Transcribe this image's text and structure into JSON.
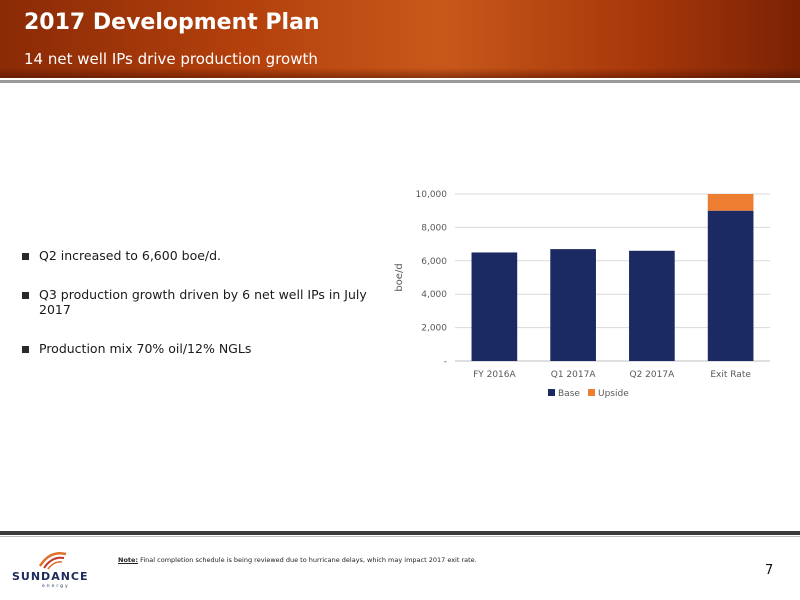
{
  "header": {
    "title": "2017 Development Plan",
    "subtitle": "14 net well IPs drive production growth"
  },
  "bullets": [
    "Q2 increased to 6,600 boe/d.",
    "Q3 production growth driven by 6 net well IPs in July 2017",
    "Production mix 70% oil/12% NGLs"
  ],
  "chart_data": {
    "type": "bar",
    "stacked": true,
    "categories": [
      "FY 2016A",
      "Q1 2017A",
      "Q2 2017A",
      "Exit Rate"
    ],
    "series": [
      {
        "name": "Base",
        "values": [
          6500,
          6700,
          6600,
          9000
        ],
        "color": "#1c2a64"
      },
      {
        "name": "Upside",
        "values": [
          0,
          0,
          0,
          1000
        ],
        "color": "#ed7d31"
      }
    ],
    "ylabel": "boe/d",
    "ylim": [
      0,
      10000
    ],
    "yticks": [
      0,
      2000,
      4000,
      6000,
      8000,
      10000
    ],
    "ytick_labels": [
      "-",
      "2,000",
      "4,000",
      "6,000",
      "8,000",
      "10,000"
    ],
    "grid": true,
    "legend": "bottom"
  },
  "footer": {
    "note_label": "Note:",
    "note_text": " Final completion schedule is being reviewed due to hurricane delays, which may impact 2017 exit rate.",
    "page_number": "7"
  },
  "logo": {
    "name": "SUNDANCE",
    "sub": "energy"
  }
}
